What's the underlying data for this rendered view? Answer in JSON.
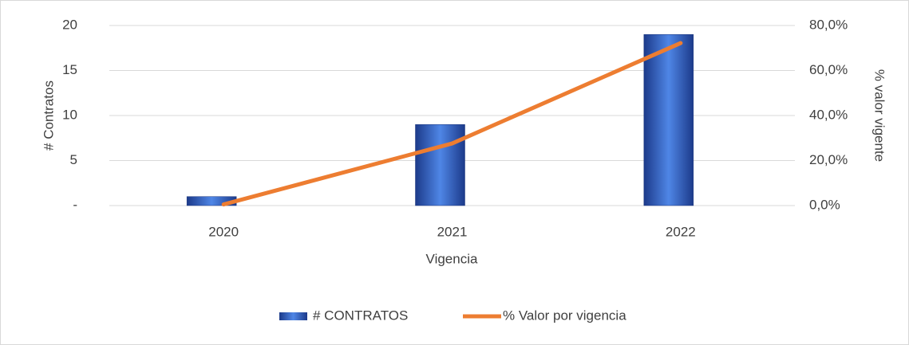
{
  "chart_data": {
    "type": "bar_line",
    "categories": [
      "2020",
      "2021",
      "2022"
    ],
    "x_label": "Vigencia",
    "y_label": "# Contratos",
    "y2_label": "% valor vigente",
    "series": [
      {
        "name": "# CONTRATOS",
        "type": "bar",
        "color": "#2f5fc4",
        "values": [
          1,
          9,
          19
        ]
      },
      {
        "name": "% Valor por vigencia",
        "type": "line",
        "color": "#ed7d31",
        "axis": "y2",
        "values": [
          0.5,
          27.6,
          72.2
        ]
      }
    ],
    "ylim": [
      0,
      20
    ],
    "yticks": [
      {
        "value": 0,
        "label": "-"
      },
      5,
      10,
      15,
      20
    ],
    "y2lim": [
      0,
      80
    ],
    "y2ticks": [
      {
        "value": 0,
        "label": "0,0%"
      },
      {
        "value": 20,
        "label": "20,0%"
      },
      {
        "value": 40,
        "label": "40,0%"
      },
      {
        "value": 60,
        "label": "60,0%"
      },
      {
        "value": 80,
        "label": "80,0%"
      }
    ],
    "grid": true,
    "legend": "bottom"
  }
}
